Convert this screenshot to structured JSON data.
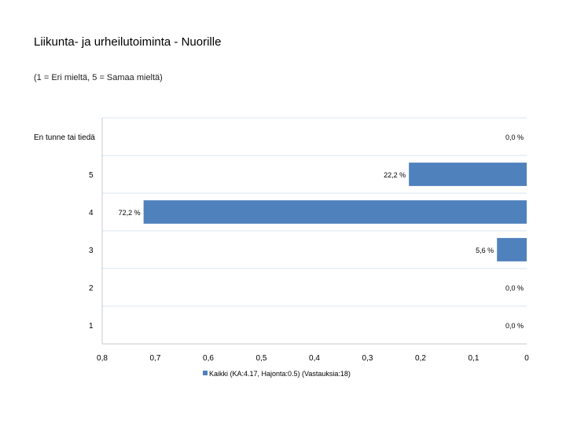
{
  "header": {
    "title": "Liikunta- ja urheilutoiminta - Nuorille",
    "subtitle": "(1 = Eri mieltä, 5 = Samaa mieltä)"
  },
  "colors": {
    "bar": "#4f81bd",
    "grid": "#d9e4ef",
    "axis": "#c9c9c9"
  },
  "chart_data": {
    "type": "bar",
    "orientation": "horizontal",
    "categories": [
      "En tunne tai tiedä",
      "5",
      "4",
      "3",
      "2",
      "1"
    ],
    "series": [
      {
        "name": "Kaikki (KA:4.17, Hajonta:0.5) (Vastauksia:18)",
        "values": [
          0.0,
          0.222,
          0.722,
          0.056,
          0.0,
          0.0
        ]
      }
    ],
    "value_labels": [
      "0,0 %",
      "22,2 %",
      "72,2 %",
      "5,6 %",
      "0,0 %",
      "0,0 %"
    ],
    "x_tick_labels": [
      "0,8",
      "0,7",
      "0,6",
      "0,5",
      "0,4",
      "0,3",
      "0,2",
      "0,1",
      "0"
    ],
    "x_ticks": [
      0.8,
      0.7,
      0.6,
      0.5,
      0.4,
      0.3,
      0.2,
      0.1,
      0.0
    ],
    "xlim": [
      0,
      0.8
    ],
    "x_axis_reversed": true,
    "grid": true,
    "legend_position": "bottom"
  }
}
